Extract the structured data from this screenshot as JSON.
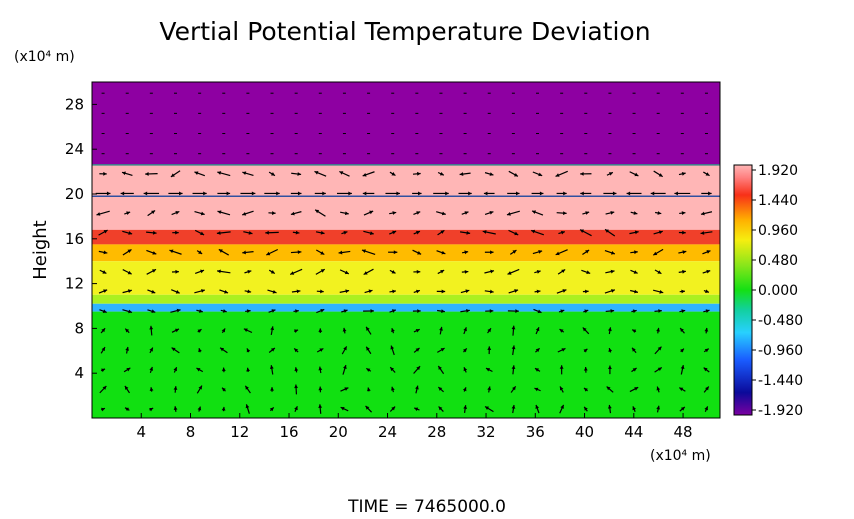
{
  "chart_data": {
    "type": "heatmap",
    "title": "Vertial Potential Temperature Deviation",
    "ylabel": "Height",
    "x_unit": "(x10⁴ m)",
    "y_unit": "(x10⁴ m)",
    "xlim": [
      0,
      51
    ],
    "ylim": [
      0,
      30
    ],
    "x_ticks": [
      4,
      8,
      12,
      16,
      20,
      24,
      28,
      32,
      36,
      40,
      44,
      48
    ],
    "y_ticks": [
      4,
      8,
      12,
      16,
      20,
      24,
      28
    ],
    "colorbar": {
      "min": -1.92,
      "max": 1.92,
      "tick_labels": [
        "1.920",
        "1.440",
        "0.960",
        "0.480",
        "0.000",
        "-0.480",
        "-0.960",
        "-1.440",
        "-1.920"
      ]
    },
    "layers": [
      {
        "y_from": 22.6,
        "y_to": 30,
        "value": -1.92,
        "color": "#8e00a2"
      },
      {
        "y_from": 19.8,
        "y_to": 22.6,
        "value": 1.92,
        "color": "#ffb6b6"
      },
      {
        "y_from": 16.8,
        "y_to": 19.8,
        "value": 1.92,
        "color": "#ffb6b6"
      },
      {
        "y_from": 15.5,
        "y_to": 16.8,
        "value": 1.5,
        "color": "#f0402a"
      },
      {
        "y_from": 14.0,
        "y_to": 15.5,
        "value": 1.0,
        "color": "#ffbb00"
      },
      {
        "y_from": 11.0,
        "y_to": 14.0,
        "value": 0.7,
        "color": "#f2f220"
      },
      {
        "y_from": 10.2,
        "y_to": 11.0,
        "value": 0.3,
        "color": "#aaf020"
      },
      {
        "y_from": 9.5,
        "y_to": 10.2,
        "value": -0.7,
        "color": "#2fb4ff"
      },
      {
        "y_from": 0,
        "y_to": 9.5,
        "value": 0.0,
        "color": "#11e011"
      }
    ],
    "overlay": "wind vectors",
    "annotation": "TIME = 7465000.0"
  }
}
